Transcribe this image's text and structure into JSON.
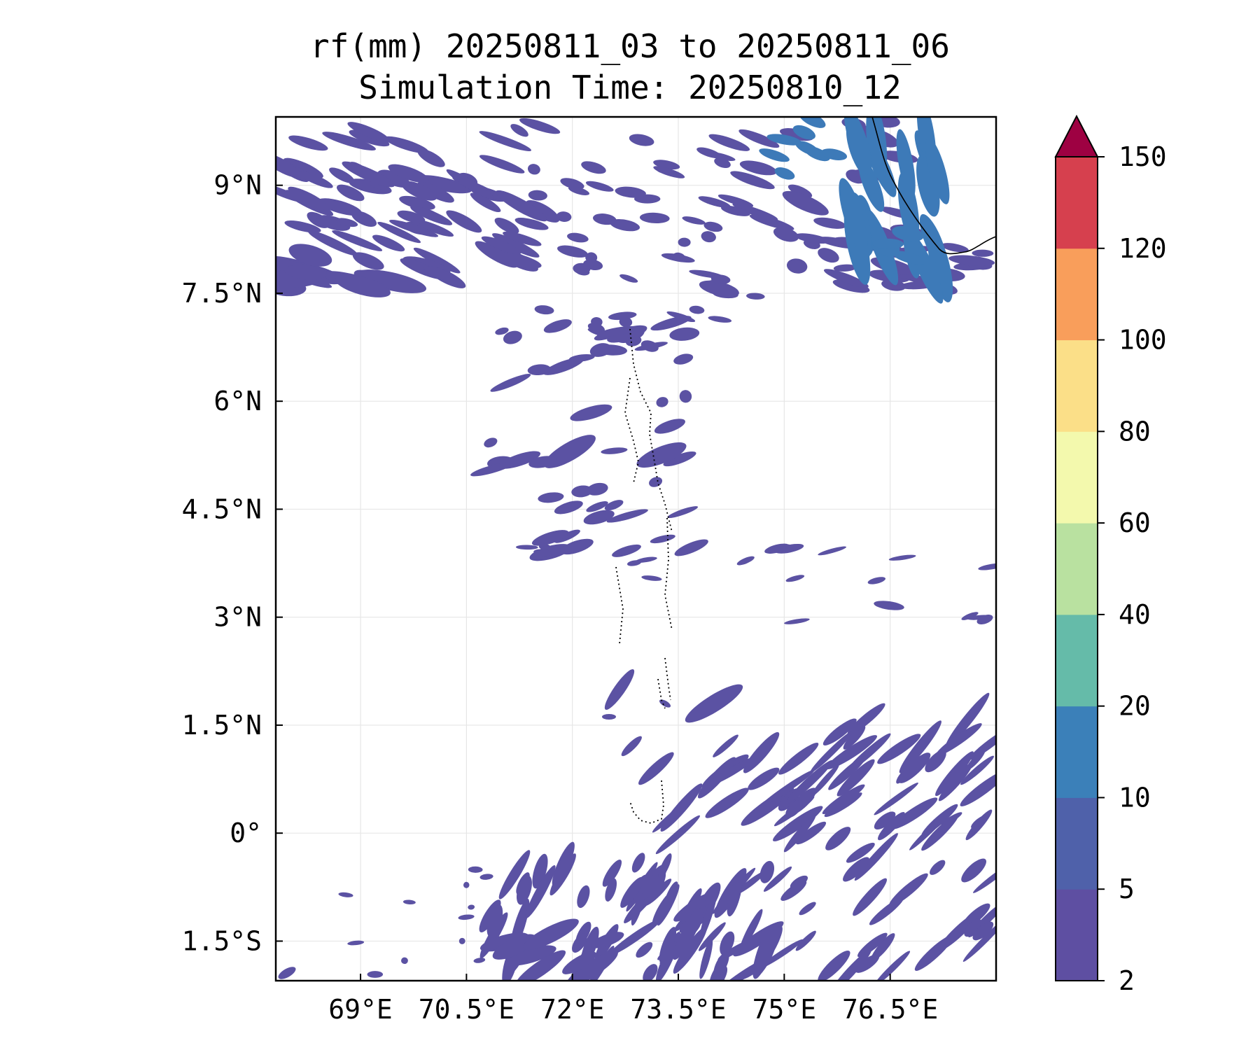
{
  "title": {
    "line1": "rf(mm) 20250811_03 to 20250811_06",
    "line2": "Simulation Time: 20250810_12"
  },
  "map": {
    "lon_range": [
      67.8,
      78.0
    ],
    "lat_range": [
      -2.05,
      9.95
    ],
    "x_ticks": [
      {
        "value": 69.0,
        "label": "69°E"
      },
      {
        "value": 70.5,
        "label": "70.5°E"
      },
      {
        "value": 72.0,
        "label": "72°E"
      },
      {
        "value": 73.5,
        "label": "73.5°E"
      },
      {
        "value": 75.0,
        "label": "75°E"
      },
      {
        "value": 76.5,
        "label": "76.5°E"
      }
    ],
    "y_ticks": [
      {
        "value": 9.0,
        "label": "9°N"
      },
      {
        "value": 7.5,
        "label": "7.5°N"
      },
      {
        "value": 6.0,
        "label": "6°N"
      },
      {
        "value": 4.5,
        "label": "4.5°N"
      },
      {
        "value": 3.0,
        "label": "3°N"
      },
      {
        "value": 1.5,
        "label": "1.5°N"
      },
      {
        "value": 0.0,
        "label": "0°"
      },
      {
        "value": -1.5,
        "label": "1.5°S"
      }
    ],
    "grid": true,
    "rain_fill_color": "#5b52a3",
    "rain_fill_color_heavy": "#3d7ab8"
  },
  "colorbar": {
    "levels": [
      "2",
      "5",
      "10",
      "20",
      "40",
      "60",
      "80",
      "100",
      "120",
      "150"
    ],
    "colors": [
      "#5e4fa2",
      "#4f61aa",
      "#3b80b9",
      "#65bba9",
      "#b9e1a0",
      "#f3f9ad",
      "#fbdf88",
      "#f99e5b",
      "#d6404e"
    ],
    "extend_color": "#9e0142",
    "extend": "max"
  }
}
